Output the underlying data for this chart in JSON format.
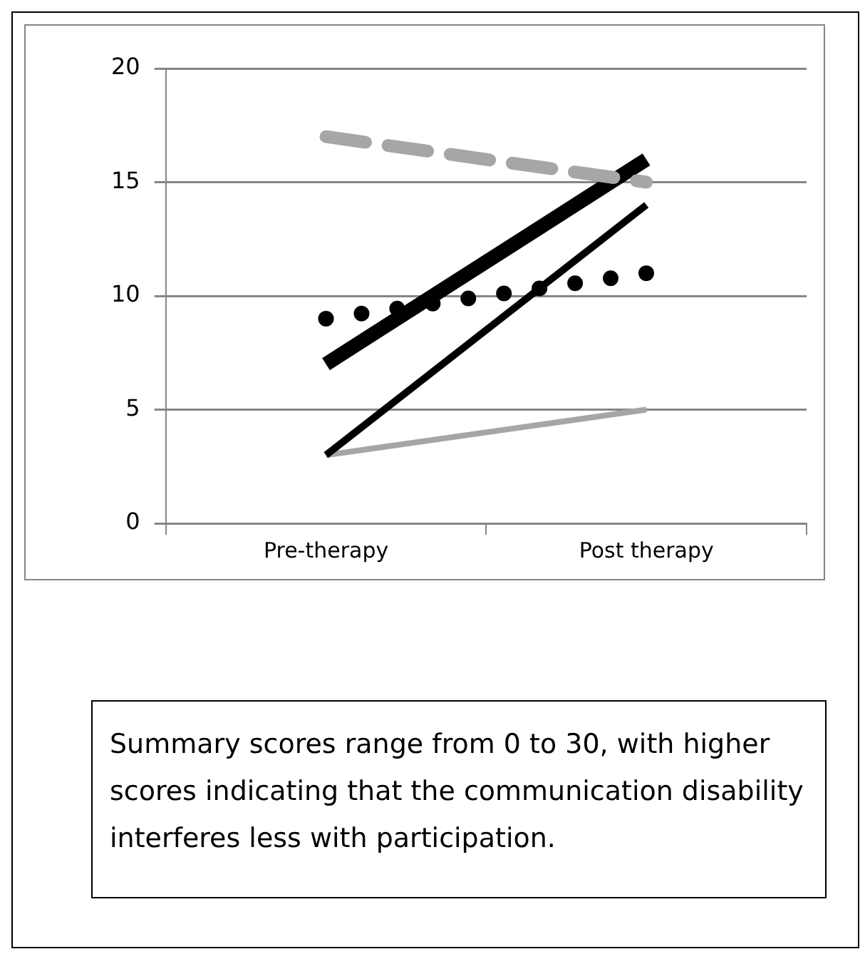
{
  "chart_data": {
    "type": "line",
    "categories": [
      "Pre-therapy",
      "Post therapy"
    ],
    "series": [
      {
        "color": "#a6a6a6",
        "values": [
          17,
          15
        ],
        "line_style": "dashed"
      },
      {
        "color": "#000000",
        "values": [
          7,
          16
        ],
        "line_style": "solid"
      },
      {
        "color": "#000000",
        "values": [
          9,
          11
        ],
        "line_style": "dotted"
      },
      {
        "color": "#000000",
        "values": [
          3,
          14
        ],
        "line_style": "solid"
      },
      {
        "color": "#a6a6a6",
        "values": [
          3,
          5
        ],
        "line_style": "solid"
      }
    ],
    "ylim": [
      0,
      20
    ],
    "yticks": [
      0,
      5,
      10,
      15,
      20
    ],
    "grid": "y",
    "legend": false,
    "annotations": [
      "Summary scores range from 0 to 30, with higher scores indicating that the communication disability interferes less with participation."
    ]
  }
}
